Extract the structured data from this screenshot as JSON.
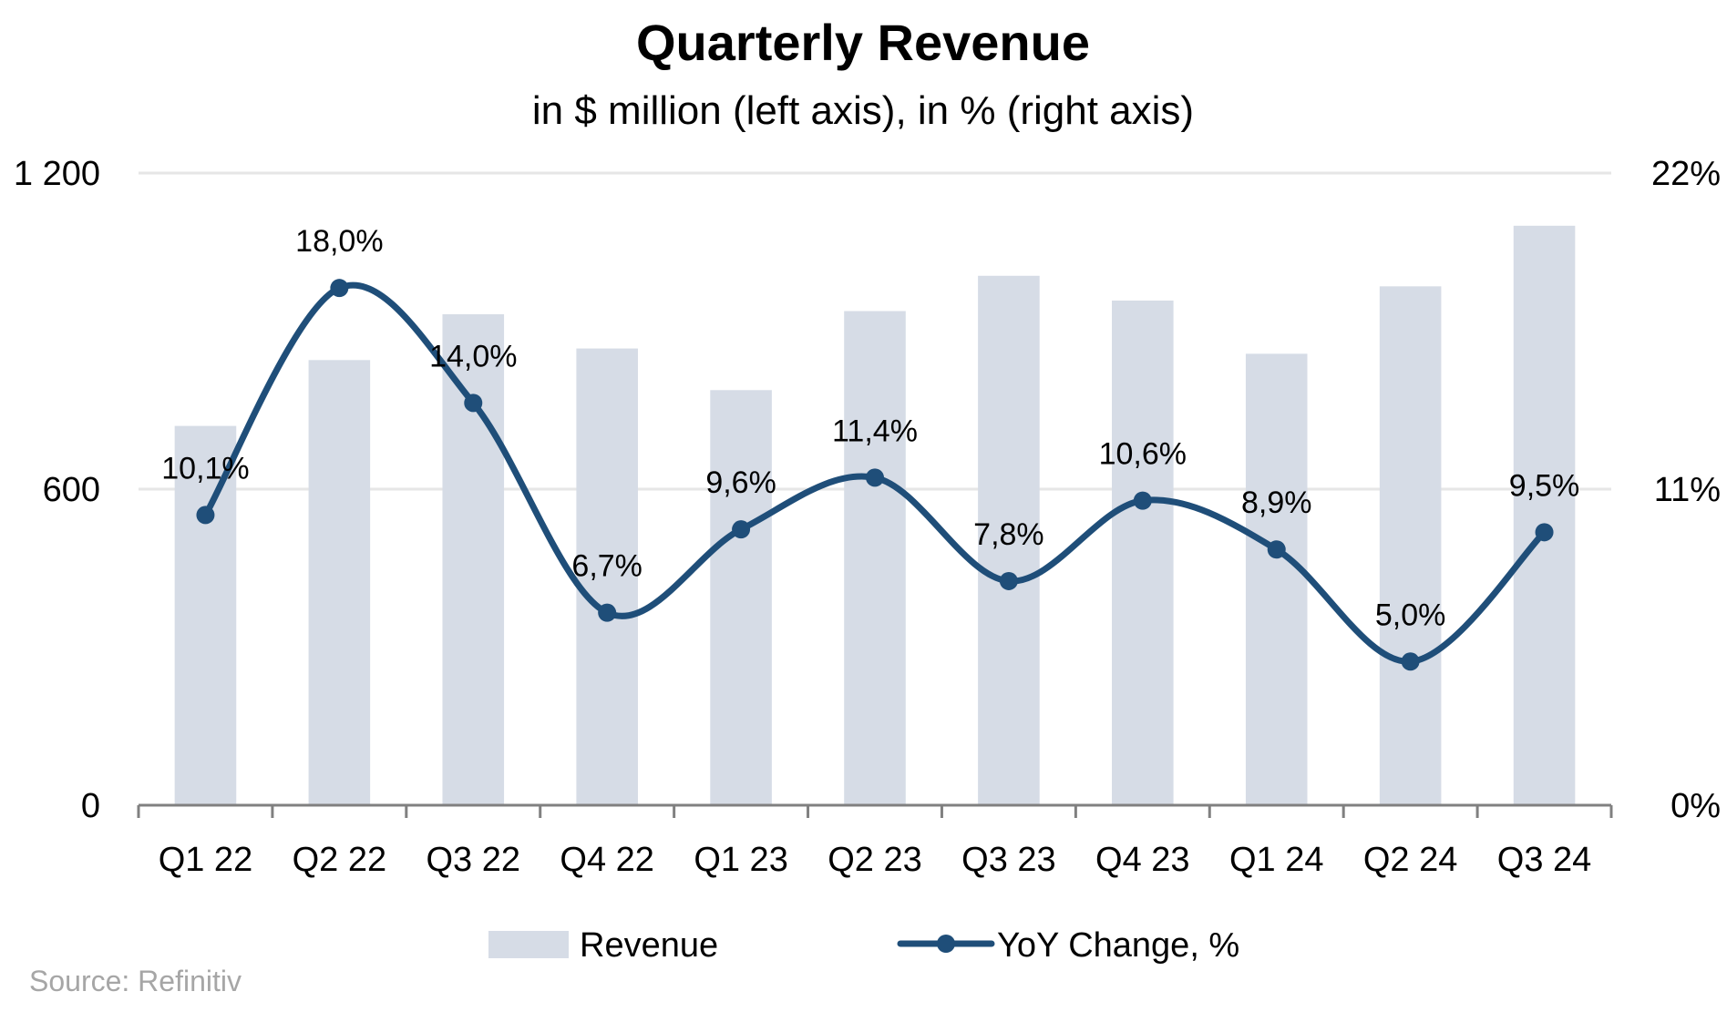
{
  "chart_data": {
    "type": "bar",
    "title": "Quarterly Revenue",
    "subtitle": "in $ million (left axis), in % (right axis)",
    "categories": [
      "Q1 22",
      "Q2 22",
      "Q3 22",
      "Q4 22",
      "Q1 23",
      "Q2 23",
      "Q3 23",
      "Q4 23",
      "Q1 24",
      "Q2 24",
      "Q3 24"
    ],
    "series": [
      {
        "name": "Revenue",
        "type": "bar",
        "axis": "left",
        "values": [
          720,
          845,
          932,
          867,
          788,
          938,
          1005,
          958,
          857,
          985,
          1100
        ]
      },
      {
        "name": "YoY Change, %",
        "type": "line",
        "axis": "right",
        "values": [
          10.1,
          18.0,
          14.0,
          6.7,
          9.6,
          11.4,
          7.8,
          10.6,
          8.9,
          5.0,
          9.5
        ],
        "labels": [
          "10,1%",
          "18,0%",
          "14,0%",
          "6,7%",
          "9,6%",
          "11,4%",
          "7,8%",
          "10,6%",
          "8,9%",
          "5,0%",
          "9,5%"
        ]
      }
    ],
    "y_left": {
      "ylim": [
        0,
        1200
      ],
      "ticks": [
        0,
        600,
        1200
      ],
      "tick_labels": [
        "0",
        "600",
        "1 200"
      ]
    },
    "y_right": {
      "ylim": [
        0,
        22
      ],
      "ticks": [
        0,
        11,
        22
      ],
      "tick_labels": [
        "0%",
        "11%",
        "22%"
      ]
    },
    "grid": true,
    "legend": {
      "position": "bottom",
      "entries": [
        "Revenue",
        "YoY Change, %"
      ]
    },
    "source": "Source: Refinitiv"
  },
  "colors": {
    "bar": "#d6dce6",
    "line": "#1f4e79",
    "grid": "#e6e6e6",
    "axis": "#808080",
    "source": "#a6a6a6"
  }
}
